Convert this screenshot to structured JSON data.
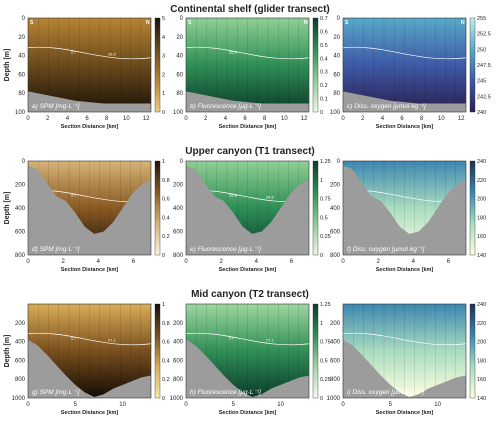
{
  "figure": {
    "row_titles": [
      "Continental shelf (glider transect)",
      "Upper canyon (T1 transect)",
      "Mid canyon (T2 transect)"
    ]
  },
  "chart_data": [
    {
      "type": "heatmap",
      "row": 0,
      "col": 0,
      "panel_label": "a) SPM [mg·L⁻¹]",
      "xlabel": "Section Distance [km]",
      "ylabel": "Depth [m]",
      "xlim": [
        0,
        12.5
      ],
      "ylim": [
        100,
        0
      ],
      "xticks": [
        0,
        2,
        4,
        6,
        8,
        10,
        12
      ],
      "yticks": [
        0,
        20,
        40,
        60,
        80,
        100
      ],
      "corner_labels": [
        "S",
        "N"
      ],
      "colorbar": {
        "min": 0,
        "max": 5,
        "ticks": [
          "0",
          "1",
          "2",
          "3",
          "4",
          "5"
        ],
        "colors": [
          "#f0d080",
          "#b78534",
          "#6b4a1c",
          "#1a1208"
        ]
      },
      "contour_labels": [
        "27",
        "26.8"
      ],
      "bathymetry_depth": [
        78,
        80,
        82,
        84,
        86,
        88,
        89,
        90,
        91,
        91,
        91,
        91,
        91,
        91
      ]
    },
    {
      "type": "heatmap",
      "row": 0,
      "col": 1,
      "panel_label": "b) Fluorescence [µg·L⁻¹]",
      "xlabel": "Section Distance [km]",
      "ylabel": "",
      "xlim": [
        0,
        12.5
      ],
      "ylim": [
        100,
        0
      ],
      "xticks": [
        0,
        2,
        4,
        6,
        8,
        10,
        12
      ],
      "yticks": [
        0,
        20,
        40,
        60,
        80,
        100
      ],
      "corner_labels": [
        "S",
        "N"
      ],
      "colorbar": {
        "min": 0,
        "max": 0.7,
        "ticks": [
          "0",
          "0.1",
          "0.2",
          "0.3",
          "0.4",
          "0.5",
          "0.6",
          "0.7"
        ],
        "colors": [
          "#eef6e8",
          "#8fcf95",
          "#2f8f56",
          "#0b3b2a"
        ]
      },
      "contour_labels": [
        "26.8"
      ],
      "bathymetry_depth": [
        78,
        80,
        82,
        84,
        86,
        88,
        89,
        90,
        91,
        91,
        91,
        91,
        91,
        91
      ]
    },
    {
      "type": "heatmap",
      "row": 0,
      "col": 2,
      "panel_label": "c) Diss. oxygen [µmol·kg⁻¹]",
      "xlabel": "Section Distance [km]",
      "ylabel": "",
      "xlim": [
        0,
        12.5
      ],
      "ylim": [
        100,
        0
      ],
      "xticks": [
        0,
        2,
        4,
        6,
        8,
        10,
        12
      ],
      "yticks": [
        0,
        20,
        40,
        60,
        80,
        100
      ],
      "corner_labels": [
        "S",
        "N"
      ],
      "colorbar": {
        "min": 240,
        "max": 255,
        "ticks": [
          "240",
          "242.5",
          "245",
          "247.5",
          "250",
          "252.5",
          "255"
        ],
        "colors": [
          "#2a1f4f",
          "#3e5aa8",
          "#58a9c8",
          "#bfeee6"
        ]
      },
      "contour_labels": [],
      "bathymetry_depth": [
        78,
        80,
        82,
        84,
        86,
        88,
        89,
        90,
        91,
        91,
        91,
        91,
        91,
        91
      ]
    },
    {
      "type": "heatmap",
      "row": 1,
      "col": 0,
      "panel_label": "d) SPM [mg·L⁻¹]",
      "xlabel": "Section Distance [km]",
      "ylabel": "Depth [m]",
      "xlim": [
        0,
        7
      ],
      "ylim": [
        800,
        0
      ],
      "xticks": [
        0,
        2,
        4,
        6
      ],
      "yticks": [
        0,
        200,
        400,
        600,
        800
      ],
      "colorbar": {
        "min": 0,
        "max": 1,
        "ticks": [
          "0",
          "0.2",
          "0.4",
          "0.6",
          "0.8",
          "1"
        ],
        "colors": [
          "#fbf3dc",
          "#d7b375",
          "#8a5a24",
          "#1a1208"
        ]
      },
      "contour_labels": [
        "27"
      ],
      "bathymetry_depth": [
        40,
        70,
        190,
        300,
        340,
        440,
        560,
        620,
        600,
        520,
        400,
        280,
        200,
        160
      ]
    },
    {
      "type": "heatmap",
      "row": 1,
      "col": 1,
      "panel_label": "e) Fluorescence [µg·L⁻¹]",
      "xlabel": "Section Distance [km]",
      "ylabel": "",
      "xlim": [
        0,
        7
      ],
      "ylim": [
        800,
        0
      ],
      "xticks": [
        0,
        2,
        4,
        6
      ],
      "yticks": [
        0,
        200,
        400,
        600,
        800
      ],
      "colorbar": {
        "min": 0,
        "max": 1.5,
        "ticks": [
          "0",
          "0.25",
          "0.5",
          "0.75",
          "1",
          "1.25"
        ],
        "colors": [
          "#eef6e8",
          "#8fcf95",
          "#2f8f56",
          "#0b3b2a"
        ]
      },
      "contour_labels": [
        "26.8",
        "26.8"
      ],
      "bathymetry_depth": [
        40,
        70,
        190,
        300,
        340,
        440,
        560,
        620,
        600,
        520,
        400,
        280,
        200,
        160
      ]
    },
    {
      "type": "heatmap",
      "row": 1,
      "col": 2,
      "panel_label": "f) Diss. oxygen [µmol·kg⁻¹]",
      "xlabel": "Section Distance [km]",
      "ylabel": "",
      "xlim": [
        0,
        7
      ],
      "ylim": [
        800,
        0
      ],
      "xticks": [
        0,
        2,
        4,
        6
      ],
      "yticks": [
        0,
        200,
        400,
        600,
        800
      ],
      "colorbar": {
        "min": 140,
        "max": 240,
        "ticks": [
          "140",
          "160",
          "180",
          "200",
          "220",
          "240"
        ],
        "colors": [
          "#ffffe0",
          "#a9dcc0",
          "#3d86b0",
          "#1d2f55"
        ]
      },
      "contour_labels": [],
      "bathymetry_depth": [
        40,
        70,
        190,
        300,
        340,
        440,
        560,
        620,
        600,
        520,
        400,
        280,
        200,
        160
      ]
    },
    {
      "type": "heatmap",
      "row": 2,
      "col": 0,
      "panel_label": "g) SPM [mg·L⁻¹]",
      "xlabel": "Section Distance [km]",
      "ylabel": "Depth [m]",
      "xlim": [
        0,
        13
      ],
      "ylim": [
        1000,
        0
      ],
      "xticks": [
        0,
        5,
        10
      ],
      "yticks": [
        200,
        400,
        600,
        800,
        1000
      ],
      "colorbar": {
        "min": 0,
        "max": 1,
        "ticks": [
          "0",
          "0.2",
          "0.4",
          "0.6",
          "0.8",
          "1"
        ],
        "colors": [
          "#f7e8a8",
          "#d8ad58",
          "#7a4f1e",
          "#120c05"
        ]
      },
      "contour_labels": [
        "27",
        "27.1"
      ],
      "bathymetry_depth": [
        380,
        440,
        540,
        650,
        760,
        860,
        940,
        990,
        960,
        900,
        860,
        820,
        780,
        760
      ]
    },
    {
      "type": "heatmap",
      "row": 2,
      "col": 1,
      "panel_label": "h) Fluorescence [µg·L⁻¹]",
      "xlabel": "Section Distance [km]",
      "ylabel": "",
      "xlim": [
        0,
        13
      ],
      "ylim": [
        1000,
        0
      ],
      "xticks": [
        0,
        5,
        10
      ],
      "yticks": [
        200,
        400,
        600,
        800,
        1000
      ],
      "colorbar": {
        "min": 0,
        "max": 1.5,
        "ticks": [
          "0",
          "0.25",
          "0.5",
          "0.75",
          "1",
          "1.25"
        ],
        "colors": [
          "#f4fbee",
          "#9ed7a0",
          "#2f8f56",
          "#0b3b2a"
        ]
      },
      "contour_labels": [
        "27",
        "27.1"
      ],
      "bathymetry_depth": [
        380,
        440,
        540,
        650,
        760,
        860,
        940,
        990,
        960,
        900,
        860,
        820,
        780,
        760
      ]
    },
    {
      "type": "heatmap",
      "row": 2,
      "col": 2,
      "panel_label": "i) Diss. oxygen [µmol·kg⁻¹]",
      "xlabel": "Section Distance [km]",
      "ylabel": "",
      "xlim": [
        0,
        13
      ],
      "ylim": [
        1000,
        0
      ],
      "xticks": [
        0,
        5,
        10
      ],
      "yticks": [
        200,
        400,
        600,
        800,
        1000
      ],
      "colorbar": {
        "min": 140,
        "max": 240,
        "ticks": [
          "140",
          "160",
          "180",
          "200",
          "220",
          "240"
        ],
        "colors": [
          "#ffffe0",
          "#a9dcc0",
          "#3d86b0",
          "#1d2f55"
        ]
      },
      "contour_labels": [],
      "bathymetry_depth": [
        380,
        440,
        540,
        650,
        760,
        860,
        940,
        990,
        960,
        900,
        860,
        820,
        780,
        760
      ]
    }
  ]
}
